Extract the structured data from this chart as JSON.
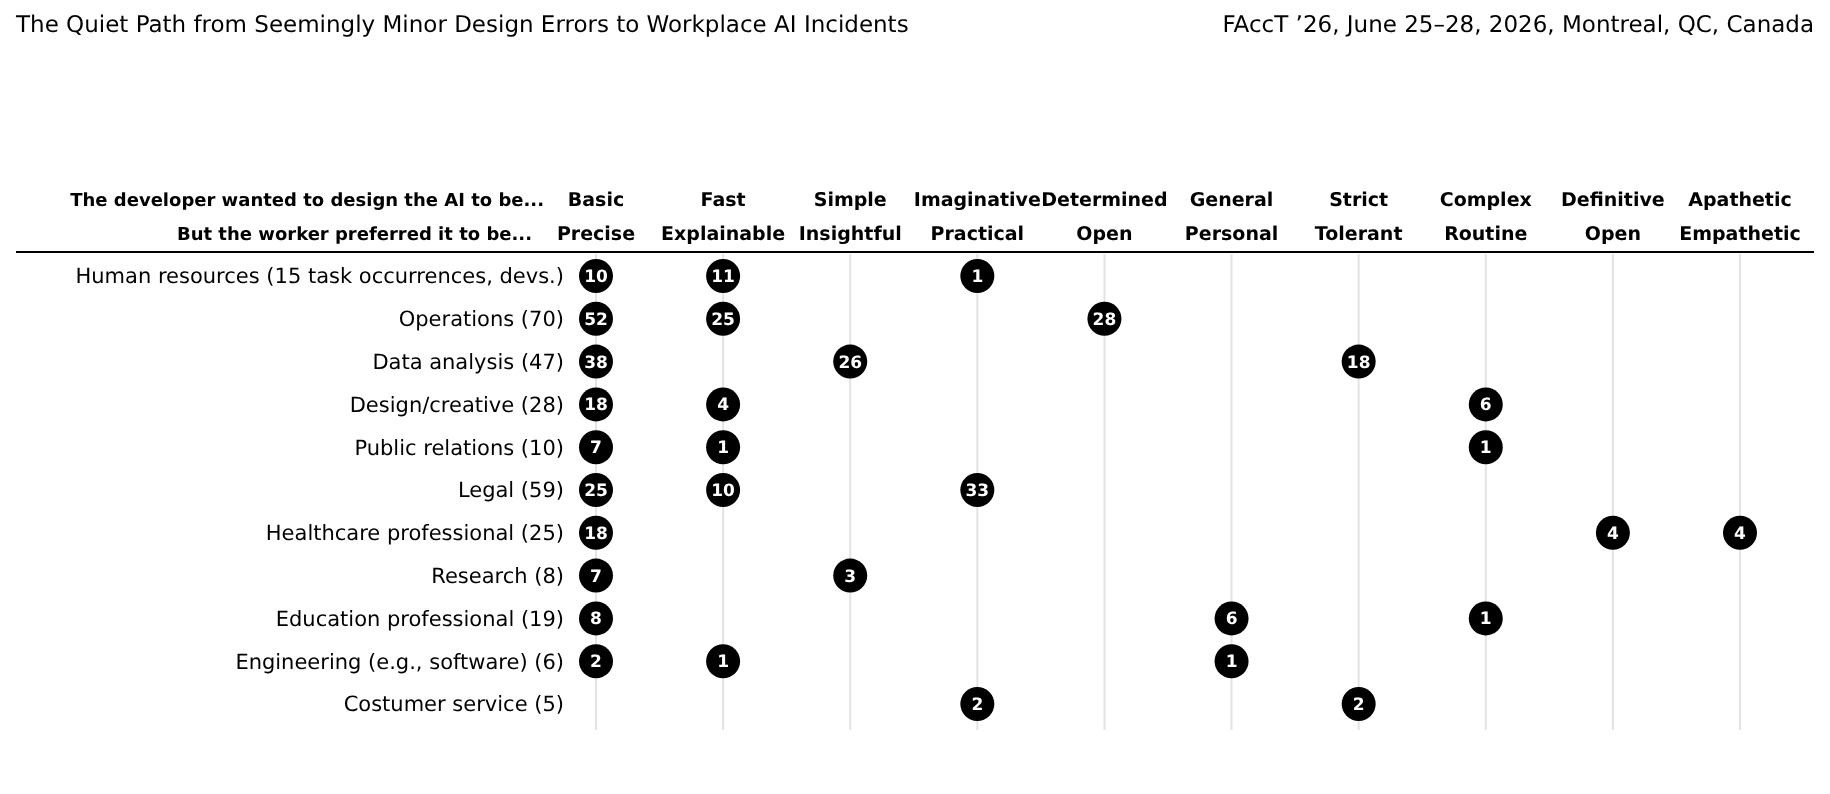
{
  "chart_data": {
    "type": "heatmap",
    "categories": [
      "Basic\nPrecise",
      "Fast\nExplainable",
      "Simple\nInsightful",
      "Imaginative\nPractical",
      "Determined\nOpen",
      "General\nPersonal",
      "Strict\nTolerant",
      "Complex\nRoutine",
      "Definitive\nOpen",
      "Apathetic\nEmpathetic"
    ],
    "y_categories": [
      "Human resources (15 task occurrences, devs.)",
      "Operations (70)",
      "Data analysis (47)",
      "Design/creative (28)",
      "Public relations (10)",
      "Legal (59)",
      "Healthcare professional (25)",
      "Research (8)",
      "Education professional (19)",
      "Engineering (e.g., software) (6)",
      "Costumer service (5)"
    ],
    "cells": [
      [
        10,
        11,
        null,
        1,
        null,
        null,
        null,
        null,
        null,
        null
      ],
      [
        52,
        25,
        null,
        null,
        28,
        null,
        null,
        null,
        null,
        null
      ],
      [
        38,
        null,
        26,
        null,
        null,
        null,
        18,
        null,
        null,
        null
      ],
      [
        18,
        4,
        null,
        null,
        null,
        null,
        null,
        6,
        null,
        null
      ],
      [
        7,
        1,
        null,
        null,
        null,
        null,
        null,
        1,
        null,
        null
      ],
      [
        25,
        10,
        null,
        33,
        null,
        null,
        null,
        null,
        null,
        null
      ],
      [
        18,
        null,
        null,
        null,
        null,
        null,
        null,
        null,
        4,
        4
      ],
      [
        7,
        null,
        3,
        null,
        null,
        null,
        null,
        null,
        null,
        null
      ],
      [
        8,
        null,
        null,
        null,
        null,
        6,
        null,
        1,
        null,
        null
      ],
      [
        2,
        1,
        null,
        null,
        null,
        1,
        null,
        null,
        null,
        null
      ],
      [
        null,
        null,
        null,
        2,
        null,
        null,
        2,
        null,
        null,
        null
      ]
    ],
    "xlabel": "The developer wanted to design the AI to be...",
    "x2label": "But the worker preferred it to be...",
    "annotations": [
      "The Quiet Path from Seemingly Minor Design Errors to Workplace AI Incidents",
      "FAccT ’26, June 25–28, 2026, Montreal, QC, Canada"
    ],
    "grid": true,
    "data_labels": true
  }
}
